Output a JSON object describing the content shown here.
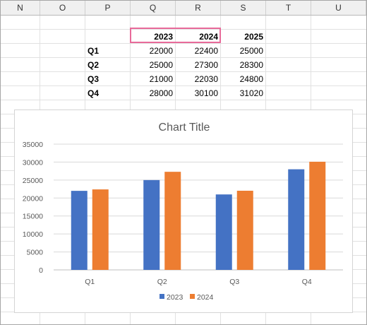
{
  "columns": [
    "N",
    "O",
    "P",
    "Q",
    "R",
    "S",
    "T",
    "U"
  ],
  "table": {
    "headers": [
      "2023",
      "2024",
      "2025"
    ],
    "rows": [
      {
        "label": "Q1",
        "values": [
          "22000",
          "22400",
          "25000"
        ]
      },
      {
        "label": "Q2",
        "values": [
          "25000",
          "27300",
          "28300"
        ]
      },
      {
        "label": "Q3",
        "values": [
          "21000",
          "22030",
          "24800"
        ]
      },
      {
        "label": "Q4",
        "values": [
          "28000",
          "30100",
          "31020"
        ]
      }
    ]
  },
  "colors": {
    "series_2023": "#4472c4",
    "series_2024": "#ed7d31",
    "selection": "#e86a9a",
    "gridline": "#d9d9d9"
  },
  "chart_data": {
    "type": "bar",
    "title": "Chart Title",
    "categories": [
      "Q1",
      "Q2",
      "Q3",
      "Q4"
    ],
    "series": [
      {
        "name": "2023",
        "values": [
          22000,
          25000,
          21000,
          28000
        ]
      },
      {
        "name": "2024",
        "values": [
          22400,
          27300,
          22030,
          30100
        ]
      }
    ],
    "yticks": [
      "0",
      "5000",
      "10000",
      "15000",
      "20000",
      "25000",
      "30000",
      "35000"
    ],
    "ylim": [
      0,
      35000
    ],
    "grid": true,
    "legend_position": "bottom"
  }
}
